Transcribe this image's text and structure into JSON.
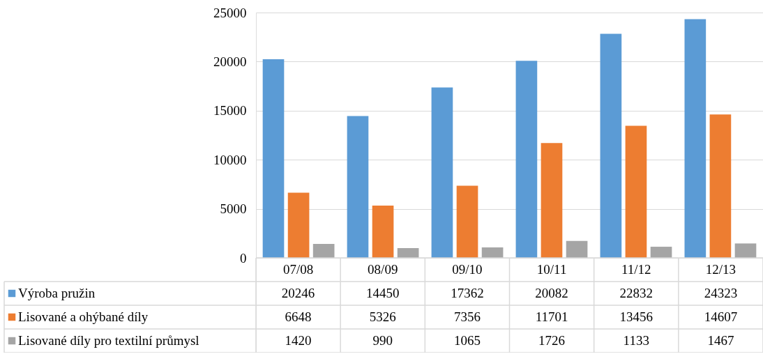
{
  "chart_data": {
    "type": "bar",
    "categories": [
      "07/08",
      "08/09",
      "09/10",
      "10/11",
      "11/12",
      "12/13"
    ],
    "series": [
      {
        "name": "Výroba pružin",
        "color": "#5b9bd5",
        "values": [
          20246,
          14450,
          17362,
          20082,
          22832,
          24323
        ]
      },
      {
        "name": "Lisované a ohýbané díly",
        "color": "#ed7d31",
        "values": [
          6648,
          5326,
          7356,
          11701,
          13456,
          14607
        ]
      },
      {
        "name": "Lisované díly pro textilní průmysl",
        "color": "#a5a5a5",
        "values": [
          1420,
          990,
          1065,
          1726,
          1133,
          1467
        ]
      }
    ],
    "ylim": [
      0,
      25000
    ],
    "yticks": [
      0,
      5000,
      10000,
      15000,
      20000,
      25000
    ],
    "grid": "y",
    "legend": "bottom left",
    "data_labels": true
  }
}
